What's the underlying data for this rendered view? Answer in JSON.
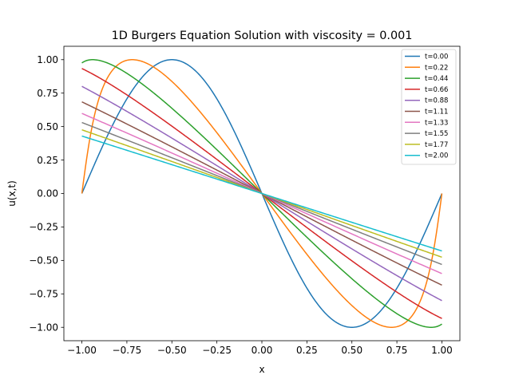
{
  "chart_data": {
    "type": "line",
    "title": "1D Burgers Equation Solution with viscosity = 0.001",
    "xlabel": "x",
    "ylabel": "u(x,t)",
    "xlim": [
      -1.1,
      1.1
    ],
    "ylim": [
      -1.1,
      1.1
    ],
    "xticks": [
      -1.0,
      -0.75,
      -0.5,
      -0.25,
      0.0,
      0.25,
      0.5,
      0.75,
      1.0
    ],
    "xtick_labels": [
      "−1.00",
      "−0.75",
      "−0.50",
      "−0.25",
      "0.00",
      "0.25",
      "0.50",
      "0.75",
      "1.00"
    ],
    "yticks": [
      -1.0,
      -0.75,
      -0.5,
      -0.25,
      0.0,
      0.25,
      0.5,
      0.75,
      1.0
    ],
    "ytick_labels": [
      "−1.00",
      "−0.75",
      "−0.50",
      "−0.25",
      "0.00",
      "0.25",
      "0.50",
      "0.75",
      "1.00"
    ],
    "grid": false,
    "legend_position": "top-right",
    "series": [
      {
        "name": "t=0.00",
        "t": 0.0,
        "color": "#1f77b4"
      },
      {
        "name": "t=0.22",
        "t": 0.22,
        "color": "#ff7f0e"
      },
      {
        "name": "t=0.44",
        "t": 0.44,
        "color": "#2ca02c"
      },
      {
        "name": "t=0.66",
        "t": 0.66,
        "color": "#d62728"
      },
      {
        "name": "t=0.88",
        "t": 0.88,
        "color": "#9467bd"
      },
      {
        "name": "t=1.11",
        "t": 1.11,
        "color": "#8c564b"
      },
      {
        "name": "t=1.33",
        "t": 1.33,
        "color": "#e377c2"
      },
      {
        "name": "t=1.55",
        "t": 1.55,
        "color": "#7f7f7f"
      },
      {
        "name": "t=1.77",
        "t": 1.77,
        "color": "#bcbd22"
      },
      {
        "name": "t=2.00",
        "t": 2.0,
        "color": "#17becf"
      }
    ]
  }
}
